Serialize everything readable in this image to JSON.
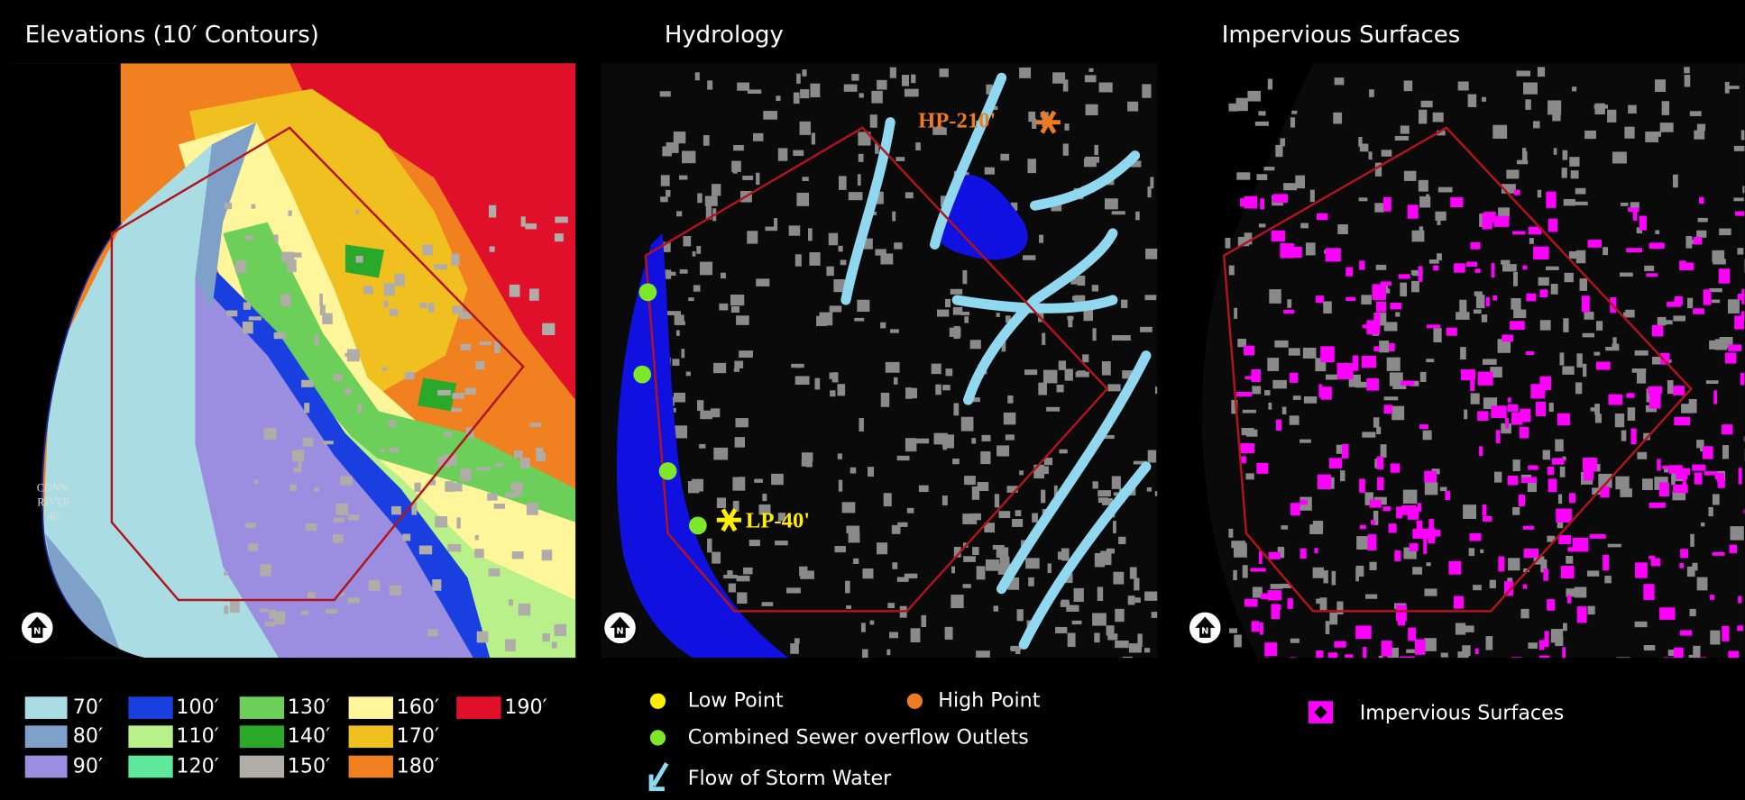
{
  "panels": [
    {
      "title": "Elevations (10′ Contours)",
      "north": "N",
      "map_labels": [
        "CONN.",
        "RIVER",
        "46'"
      ]
    },
    {
      "title": "Hydrology",
      "north": "N",
      "map_labels": [
        "HP-210'",
        "LP-40'"
      ]
    },
    {
      "title": "Impervious Surfaces",
      "north": "N"
    }
  ],
  "elevation_legend": [
    {
      "label": "70′",
      "color": "#a9dde3"
    },
    {
      "label": "80′",
      "color": "#7fa0c8"
    },
    {
      "label": "90′",
      "color": "#9b8ee0"
    },
    {
      "label": "100′",
      "color": "#1a3fe0"
    },
    {
      "label": "110′",
      "color": "#b8f08a"
    },
    {
      "label": "120′",
      "color": "#5ee89a"
    },
    {
      "label": "130′",
      "color": "#6ccf5a"
    },
    {
      "label": "140′",
      "color": "#2aa82a"
    },
    {
      "label": "150′",
      "color": "#b0aca8"
    },
    {
      "label": "160′",
      "color": "#fff59a"
    },
    {
      "label": "170′",
      "color": "#f0c020"
    },
    {
      "label": "180′",
      "color": "#f08020"
    },
    {
      "label": "190′",
      "color": "#e0102a"
    }
  ],
  "hydrology_legend": [
    {
      "label": "Low Point",
      "color": "#ffee00"
    },
    {
      "label": "High Point",
      "color": "#f07a20"
    },
    {
      "label": "Combined Sewer overflow Outlets",
      "color": "#7de82a"
    },
    {
      "label": "Flow of Storm Water",
      "color": "#8fd8f0"
    }
  ],
  "impervious_legend": [
    {
      "label": "Impervious Surfaces",
      "color": "#ff00ff"
    }
  ]
}
